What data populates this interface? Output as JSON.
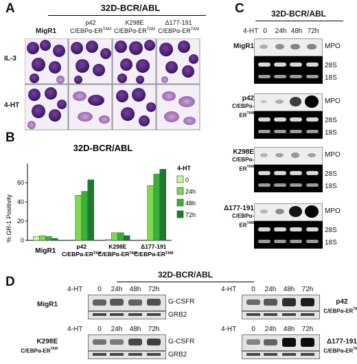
{
  "panel_a": {
    "label": "A",
    "header": "32D-BCR/ABL",
    "columns": [
      {
        "line1": "MigR1",
        "line2": ""
      },
      {
        "line1": "p42",
        "line2": "C/EBPα-ER",
        "sup": "TAM"
      },
      {
        "line1": "K298E",
        "line2": "C/EBPα-ER",
        "sup": "TAM"
      },
      {
        "line1": "Δ177-191",
        "line2": "C/EBPα-ER",
        "sup": "TAM"
      }
    ],
    "rows": [
      "IL-3",
      "4-HT"
    ]
  },
  "panel_b": {
    "label": "B",
    "chart_data": {
      "type": "bar",
      "title": "32D-BCR/ABL",
      "ylabel": "% GR-1 Positivity",
      "ylim": [
        0,
        80
      ],
      "yticks": [
        0,
        20,
        40,
        60
      ],
      "categories": [
        "MigR1",
        "p42 C/EBPα-ER^TAM",
        "K298E C/EBPα-ER^TAM",
        "Δ177-191 C/EBPα-ER^TAM"
      ],
      "series": [
        {
          "name": "0",
          "color": "#c9f5a4",
          "values": [
            4,
            0.5,
            1,
            0.5
          ]
        },
        {
          "name": "24h",
          "color": "#7fd94c",
          "values": [
            5,
            47,
            8,
            57
          ]
        },
        {
          "name": "48h",
          "color": "#3bae3b",
          "values": [
            4,
            51,
            8,
            69
          ]
        },
        {
          "name": "72h",
          "color": "#1e7a32",
          "values": [
            2,
            63,
            5,
            74
          ]
        }
      ],
      "legend_title": "4-HT",
      "legend_position": "right"
    },
    "xlabels": [
      {
        "line1": "MigR1",
        "line2": ""
      },
      {
        "line1": "p42",
        "line2": "C/EBPα-ER",
        "sup": "TAM"
      },
      {
        "line1": "K298E",
        "line2": "C/EBPα-ER",
        "sup": "TAM"
      },
      {
        "line1": "Δ177-191",
        "line2": "C/EBPα-ER",
        "sup": "TAM"
      }
    ]
  },
  "panel_c": {
    "label": "C",
    "header": "32D-BCR/ABL",
    "treatment": "4-HT",
    "timepoints": [
      "0",
      "24h",
      "48h",
      "72h"
    ],
    "blocks": [
      {
        "line1": "MigR1",
        "line2": "",
        "mpo": [
          0.15,
          0.3,
          0.35,
          0.35
        ]
      },
      {
        "line1": "p42",
        "line2": "C/EBPα-ER",
        "sup": "TAM",
        "mpo": [
          0.05,
          0.15,
          0.7,
          1.0
        ]
      },
      {
        "line1": "K298E",
        "line2": "C/EBPα-ER",
        "sup": "TAM",
        "mpo": [
          0.1,
          0.2,
          0.25,
          0.2
        ]
      },
      {
        "line1": "Δ177-191",
        "line2": "C/EBPα-ER",
        "sup": "TAM",
        "mpo": [
          0.1,
          0.3,
          0.9,
          1.0
        ]
      }
    ],
    "bands": [
      "MPO",
      "28S",
      "18S"
    ]
  },
  "panel_d": {
    "label": "D",
    "header": "32D-BCR/ABL",
    "treatment": "4-HT",
    "timepoints": [
      "0",
      "24h",
      "48h",
      "72h"
    ],
    "bands": [
      "G-CSFR",
      "GRB2"
    ],
    "blots": [
      {
        "line1": "MigR1",
        "line2": "",
        "gcsfr": [
          0.5,
          0.55,
          0.5,
          0.6
        ]
      },
      {
        "line1": "p42",
        "line2": "C/EBPα-ER",
        "sup": "TAM",
        "gcsfr": [
          0.45,
          0.55,
          0.8,
          0.9
        ]
      },
      {
        "line1": "K298E",
        "line2": "C/EBPα-ER",
        "sup": "TAM",
        "gcsfr": [
          0.4,
          0.35,
          0.65,
          0.7
        ]
      },
      {
        "line1": "Δ177-191",
        "line2": "C/EBPα-ER",
        "sup": "TAM",
        "gcsfr": [
          0.3,
          0.5,
          1.0,
          1.0
        ]
      }
    ]
  }
}
